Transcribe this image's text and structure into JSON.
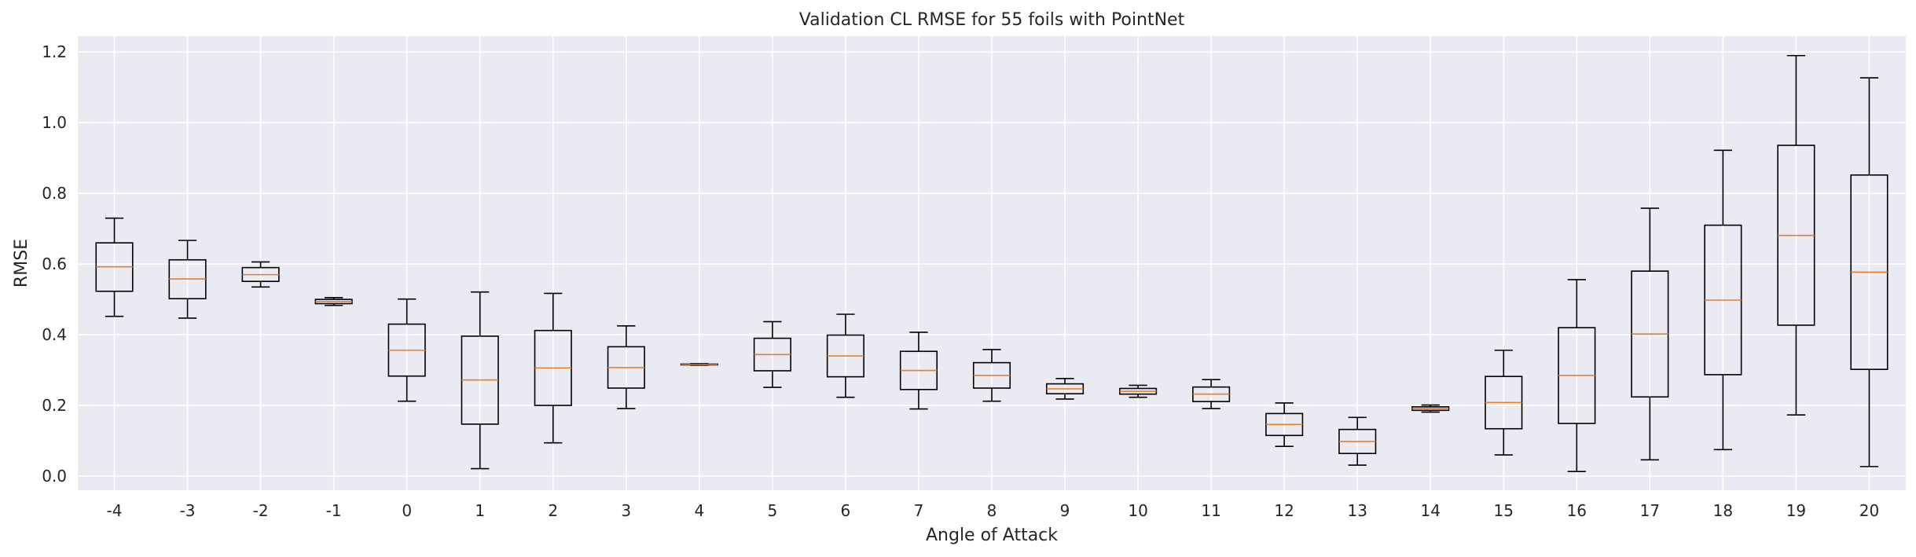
{
  "chart_data": {
    "type": "boxplot",
    "title": "Validation CL RMSE for 55 foils with PointNet",
    "xlabel": "Angle of Attack",
    "ylabel": "RMSE",
    "ylim": [
      -0.04,
      1.245
    ],
    "yticks": [
      "0.0",
      "0.2",
      "0.4",
      "0.6",
      "0.8",
      "1.0",
      "1.2"
    ],
    "grid": true,
    "colors": {
      "background": "#eaeaf2",
      "grid": "#ffffff",
      "box": "#000000",
      "median": "#e1812c"
    },
    "categories": [
      "-4",
      "-3",
      "-2",
      "-1",
      "0",
      "1",
      "2",
      "3",
      "4",
      "5",
      "6",
      "7",
      "8",
      "9",
      "10",
      "11",
      "12",
      "13",
      "14",
      "15",
      "16",
      "17",
      "18",
      "19",
      "20"
    ],
    "boxes": [
      {
        "whislo": 0.452,
        "q1": 0.523,
        "med": 0.592,
        "q3": 0.66,
        "whishi": 0.73
      },
      {
        "whislo": 0.447,
        "q1": 0.502,
        "med": 0.558,
        "q3": 0.612,
        "whishi": 0.667
      },
      {
        "whislo": 0.535,
        "q1": 0.551,
        "med": 0.57,
        "q3": 0.59,
        "whishi": 0.606
      },
      {
        "whislo": 0.483,
        "q1": 0.488,
        "med": 0.494,
        "q3": 0.5,
        "whishi": 0.505
      },
      {
        "whislo": 0.212,
        "q1": 0.283,
        "med": 0.356,
        "q3": 0.43,
        "whishi": 0.501
      },
      {
        "whislo": 0.021,
        "q1": 0.147,
        "med": 0.272,
        "q3": 0.396,
        "whishi": 0.521
      },
      {
        "whislo": 0.094,
        "q1": 0.2,
        "med": 0.306,
        "q3": 0.412,
        "whishi": 0.517
      },
      {
        "whislo": 0.191,
        "q1": 0.249,
        "med": 0.307,
        "q3": 0.366,
        "whishi": 0.425
      },
      {
        "whislo": 0.314,
        "q1": 0.315,
        "med": 0.316,
        "q3": 0.317,
        "whishi": 0.318
      },
      {
        "whislo": 0.251,
        "q1": 0.298,
        "med": 0.344,
        "q3": 0.39,
        "whishi": 0.437
      },
      {
        "whislo": 0.223,
        "q1": 0.281,
        "med": 0.34,
        "q3": 0.399,
        "whishi": 0.458
      },
      {
        "whislo": 0.19,
        "q1": 0.245,
        "med": 0.299,
        "q3": 0.353,
        "whishi": 0.407
      },
      {
        "whislo": 0.212,
        "q1": 0.249,
        "med": 0.285,
        "q3": 0.321,
        "whishi": 0.358
      },
      {
        "whislo": 0.218,
        "q1": 0.233,
        "med": 0.247,
        "q3": 0.261,
        "whishi": 0.276
      },
      {
        "whislo": 0.223,
        "q1": 0.232,
        "med": 0.24,
        "q3": 0.248,
        "whishi": 0.257
      },
      {
        "whislo": 0.191,
        "q1": 0.211,
        "med": 0.232,
        "q3": 0.252,
        "whishi": 0.273
      },
      {
        "whislo": 0.084,
        "q1": 0.115,
        "med": 0.146,
        "q3": 0.177,
        "whishi": 0.207
      },
      {
        "whislo": 0.031,
        "q1": 0.064,
        "med": 0.098,
        "q3": 0.132,
        "whishi": 0.166
      },
      {
        "whislo": 0.181,
        "q1": 0.186,
        "med": 0.191,
        "q3": 0.196,
        "whishi": 0.201
      },
      {
        "whislo": 0.06,
        "q1": 0.134,
        "med": 0.208,
        "q3": 0.282,
        "whishi": 0.356
      },
      {
        "whislo": 0.013,
        "q1": 0.149,
        "med": 0.285,
        "q3": 0.42,
        "whishi": 0.556
      },
      {
        "whislo": 0.046,
        "q1": 0.224,
        "med": 0.402,
        "q3": 0.58,
        "whishi": 0.758
      },
      {
        "whislo": 0.075,
        "q1": 0.287,
        "med": 0.498,
        "q3": 0.71,
        "whishi": 0.922
      },
      {
        "whislo": 0.173,
        "q1": 0.427,
        "med": 0.681,
        "q3": 0.936,
        "whishi": 1.19
      },
      {
        "whislo": 0.027,
        "q1": 0.302,
        "med": 0.577,
        "q3": 0.852,
        "whishi": 1.127
      }
    ]
  }
}
